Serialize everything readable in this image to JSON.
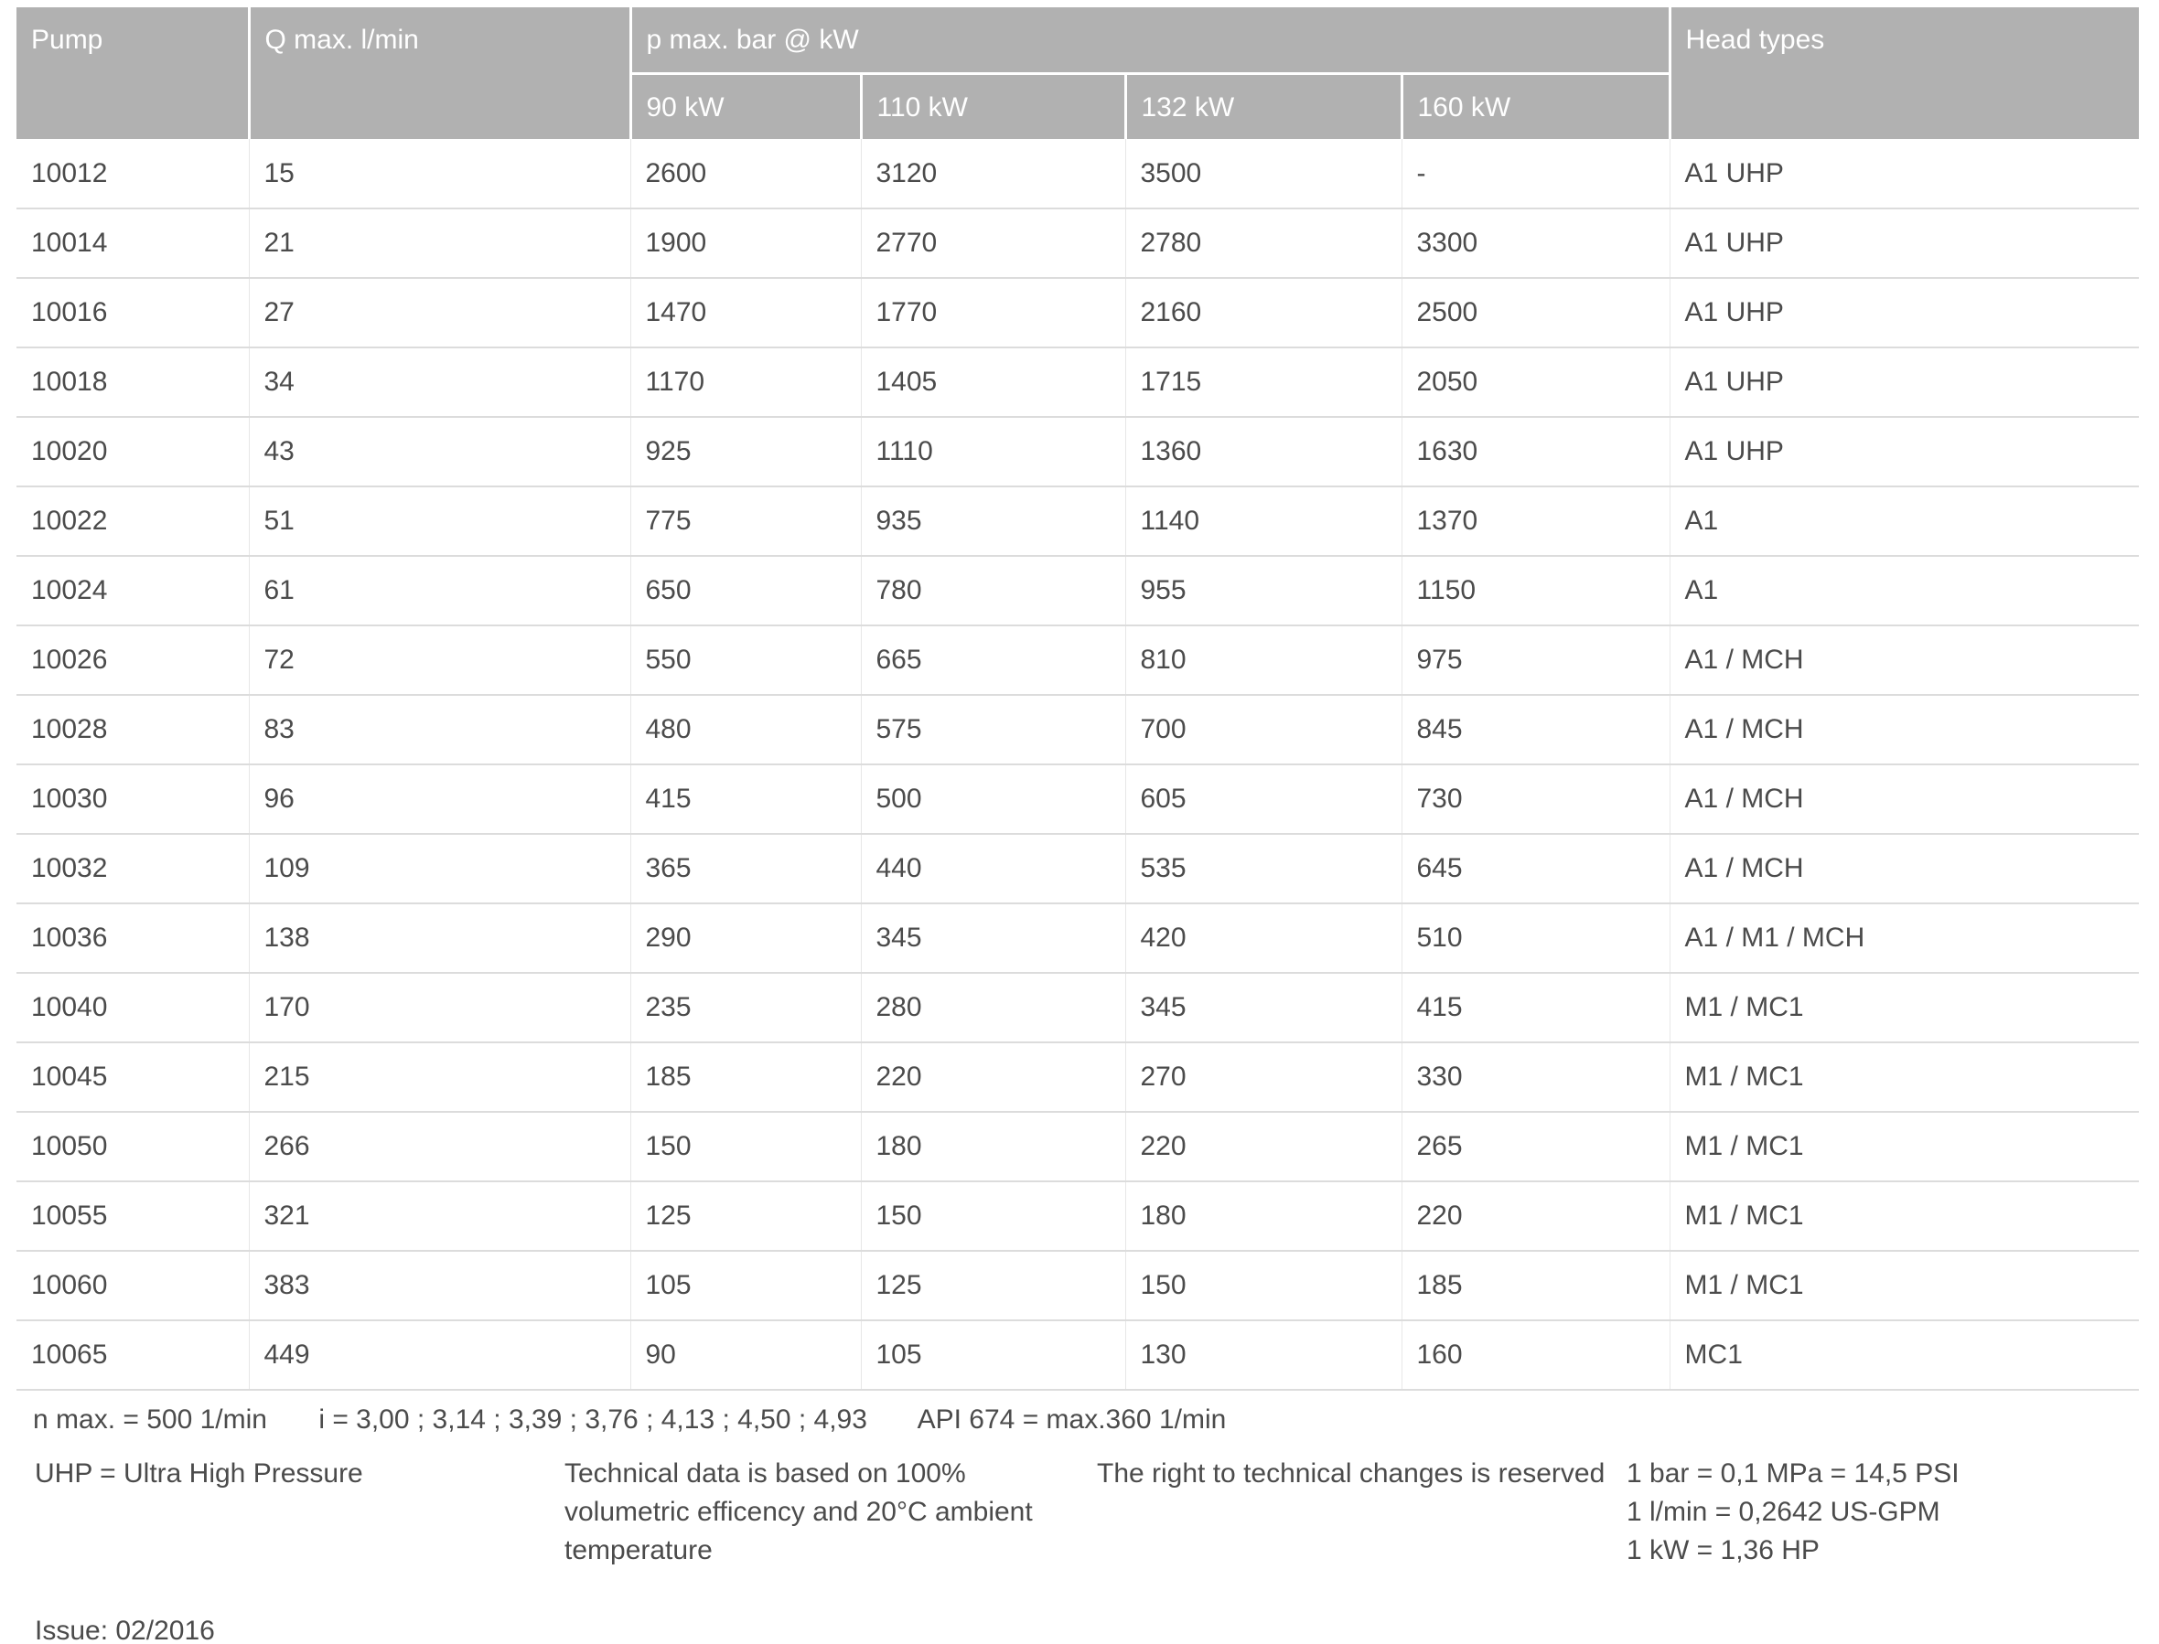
{
  "table": {
    "headers": {
      "pump": "Pump",
      "qmax": "Q max. l/min",
      "pmax_group": "p max. bar @ kW",
      "kw_columns": [
        "90 kW",
        "110 kW",
        "132 kW",
        "160 kW"
      ],
      "head_types": "Head types"
    },
    "rows": [
      [
        "10012",
        "15",
        "2600",
        "3120",
        "3500",
        "-",
        "A1 UHP"
      ],
      [
        "10014",
        "21",
        "1900",
        "2770",
        "2780",
        "3300",
        "A1 UHP"
      ],
      [
        "10016",
        "27",
        "1470",
        "1770",
        "2160",
        "2500",
        "A1 UHP"
      ],
      [
        "10018",
        "34",
        "1170",
        "1405",
        "1715",
        "2050",
        "A1 UHP"
      ],
      [
        "10020",
        "43",
        "925",
        "1110",
        "1360",
        "1630",
        "A1 UHP"
      ],
      [
        "10022",
        "51",
        "775",
        "935",
        "1140",
        "1370",
        "A1"
      ],
      [
        "10024",
        "61",
        "650",
        "780",
        "955",
        "1150",
        "A1"
      ],
      [
        "10026",
        "72",
        "550",
        "665",
        "810",
        "975",
        "A1 / MCH"
      ],
      [
        "10028",
        "83",
        "480",
        "575",
        "700",
        "845",
        "A1 / MCH"
      ],
      [
        "10030",
        "96",
        "415",
        "500",
        "605",
        "730",
        "A1 / MCH"
      ],
      [
        "10032",
        "109",
        "365",
        "440",
        "535",
        "645",
        "A1 / MCH"
      ],
      [
        "10036",
        "138",
        "290",
        "345",
        "420",
        "510",
        "A1 / M1 / MCH"
      ],
      [
        "10040",
        "170",
        "235",
        "280",
        "345",
        "415",
        "M1 / MC1"
      ],
      [
        "10045",
        "215",
        "185",
        "220",
        "270",
        "330",
        "M1 / MC1"
      ],
      [
        "10050",
        "266",
        "150",
        "180",
        "220",
        "265",
        "M1 / MC1"
      ],
      [
        "10055",
        "321",
        "125",
        "150",
        "180",
        "220",
        "M1 / MC1"
      ],
      [
        "10060",
        "383",
        "105",
        "125",
        "150",
        "185",
        "M1 / MC1"
      ],
      [
        "10065",
        "449",
        "90",
        "105",
        "130",
        "160",
        "MC1"
      ]
    ]
  },
  "footnote": {
    "n_max": "n max. = 500 1/min",
    "i_values": "i = 3,00 ; 3,14 ; 3,39 ; 3,76 ; 4,13 ; 4,50 ; 4,93",
    "api": "API 674 = max.360 1/min"
  },
  "footer": {
    "uhp_note": "UHP = Ultra High Pressure",
    "technical_note": "Technical data is based on 100% volumetric efficency and 20°C ambient temperature",
    "rights_note": "The right to technical changes is reserved",
    "conversions": [
      "1 bar = 0,1 MPa = 14,5 PSI",
      "1 l/min = 0,2642 US-GPM",
      "1 kW = 1,36 HP"
    ],
    "issue": "Issue: 02/2016"
  },
  "colors": {
    "header_bg": "#b1b1b1",
    "header_text": "#ffffff",
    "body_text": "#4b4b4b",
    "row_border": "#dcdcdc",
    "col_border": "#e7e7e7"
  }
}
